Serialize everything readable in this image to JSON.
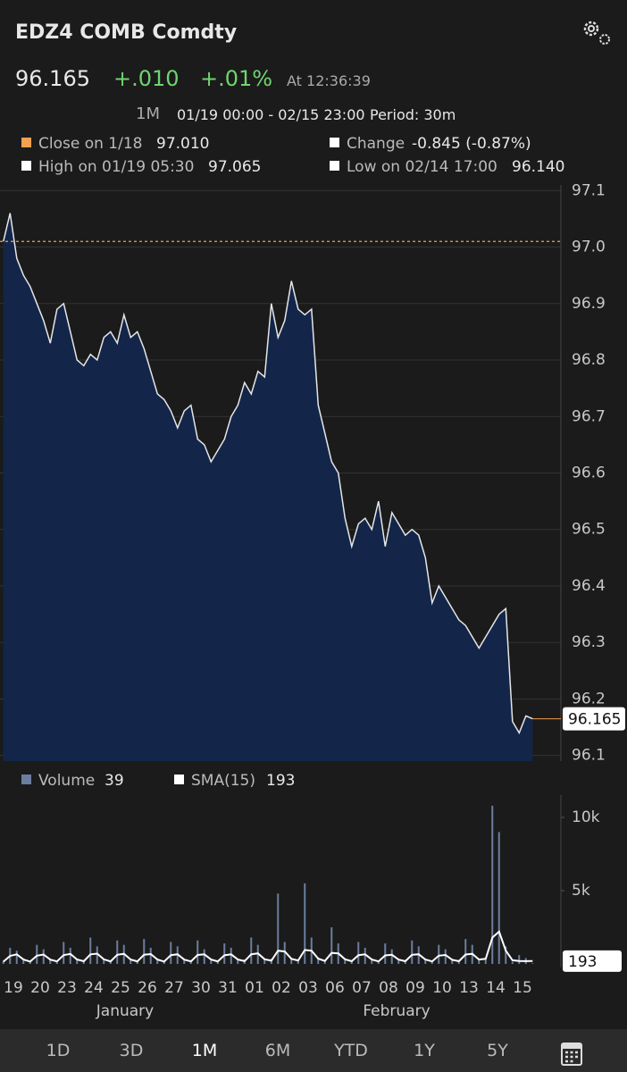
{
  "header": {
    "ticker": "EDZ4 COMB Comdty",
    "last": "96.165",
    "change": "+.010",
    "change_pct": "+.01%",
    "time": "At 12:36:39"
  },
  "range": {
    "button": "1M",
    "span": "01/19 00:00 - 02/15 23:00",
    "period": "Period: 30m"
  },
  "stats": {
    "change_label": "Change",
    "change_value": "-0.845 (-0.87%)",
    "high_label": "High on 01/19 05:30",
    "high_value": "97.065",
    "low_label": "Low on 02/14 17:00",
    "low_value": "96.140"
  },
  "chart_data": [
    {
      "type": "area",
      "color": "#e6e6e6",
      "fill": "#13264a",
      "reference_line": {
        "name": "Close on 1/18",
        "value": 97.01,
        "value_label": "97.010",
        "color": "#f0a050"
      },
      "values": [
        97.01,
        97.06,
        96.98,
        96.95,
        96.93,
        96.9,
        96.87,
        96.83,
        96.89,
        96.9,
        96.85,
        96.8,
        96.79,
        96.81,
        96.8,
        96.84,
        96.85,
        96.83,
        96.88,
        96.84,
        96.85,
        96.82,
        96.78,
        96.74,
        96.73,
        96.71,
        96.68,
        96.71,
        96.72,
        96.66,
        96.65,
        96.62,
        96.64,
        96.66,
        96.7,
        96.72,
        96.76,
        96.74,
        96.78,
        96.77,
        96.9,
        96.84,
        96.87,
        96.94,
        96.89,
        96.88,
        96.89,
        96.72,
        96.67,
        96.62,
        96.6,
        96.52,
        96.47,
        96.51,
        96.52,
        96.5,
        96.55,
        96.47,
        96.53,
        96.51,
        96.49,
        96.5,
        96.49,
        96.45,
        96.37,
        96.4,
        96.38,
        96.36,
        96.34,
        96.33,
        96.31,
        96.29,
        96.31,
        96.33,
        96.35,
        96.36,
        96.16,
        96.14,
        96.17,
        96.165
      ],
      "ylim": [
        96.09,
        97.11
      ],
      "yticks": [
        96.1,
        96.2,
        96.3,
        96.4,
        96.5,
        96.6,
        96.7,
        96.8,
        96.9,
        {
          "value": 97,
          "label": "97.0"
        },
        97.1
      ],
      "grid": true
    },
    {
      "type": "bar",
      "categories": [
        "19",
        null,
        null,
        null,
        "20",
        null,
        null,
        null,
        "23",
        null,
        null,
        null,
        "24",
        null,
        null,
        null,
        "25",
        null,
        null,
        null,
        "26",
        null,
        null,
        null,
        "27",
        null,
        null,
        null,
        "30",
        null,
        null,
        null,
        "31",
        null,
        null,
        null,
        "01",
        null,
        null,
        null,
        "02",
        null,
        null,
        null,
        "03",
        null,
        null,
        null,
        "06",
        null,
        null,
        null,
        "07",
        null,
        null,
        null,
        "08",
        null,
        null,
        null,
        "09",
        null,
        null,
        null,
        "10",
        null,
        null,
        null,
        "13",
        null,
        null,
        null,
        "14",
        null,
        null,
        null,
        "15",
        null,
        null,
        null
      ],
      "months": [
        "January",
        "February"
      ],
      "series": [
        {
          "name": "Volume",
          "color": "#6b7ea0",
          "values": [
            200,
            1100,
            900,
            250,
            150,
            1300,
            1000,
            300,
            200,
            1500,
            1100,
            300,
            250,
            1800,
            1200,
            350,
            200,
            1600,
            1300,
            300,
            250,
            1700,
            1100,
            300,
            200,
            1500,
            1200,
            250,
            200,
            1600,
            1000,
            300,
            250,
            1400,
            1100,
            300,
            300,
            1800,
            1300,
            350,
            350,
            4800,
            1500,
            400,
            300,
            5500,
            1800,
            400,
            250,
            2500,
            1400,
            300,
            200,
            1500,
            1100,
            300,
            200,
            1400,
            1000,
            250,
            250,
            1600,
            1200,
            300,
            200,
            1300,
            1000,
            250,
            250,
            1700,
            1300,
            300,
            400,
            10800,
            9000,
            1200,
            150,
            600,
            400,
            39
          ]
        },
        {
          "name": "SMA(15)",
          "color": "#ffffff",
          "type": "line",
          "values": [
            150,
            550,
            650,
            300,
            160,
            560,
            640,
            290,
            170,
            600,
            680,
            300,
            180,
            650,
            700,
            310,
            170,
            620,
            690,
            300,
            170,
            630,
            670,
            300,
            160,
            600,
            660,
            290,
            170,
            610,
            650,
            300,
            170,
            590,
            650,
            300,
            190,
            660,
            720,
            320,
            220,
            900,
            850,
            350,
            230,
            950,
            900,
            360,
            200,
            750,
            720,
            320,
            180,
            600,
            650,
            300,
            170,
            580,
            620,
            290,
            180,
            620,
            660,
            300,
            170,
            560,
            610,
            280,
            180,
            640,
            690,
            300,
            350,
            1800,
            2200,
            900,
            250,
            200,
            190,
            193
          ]
        }
      ],
      "ylim": [
        0,
        11000
      ],
      "yticks": [
        {
          "value": 5000,
          "label": "5k"
        },
        {
          "value": 10000,
          "label": "10k"
        }
      ]
    }
  ],
  "tabs": [
    "1D",
    "3D",
    "1M",
    "6M",
    "YTD",
    "1Y",
    "5Y"
  ]
}
